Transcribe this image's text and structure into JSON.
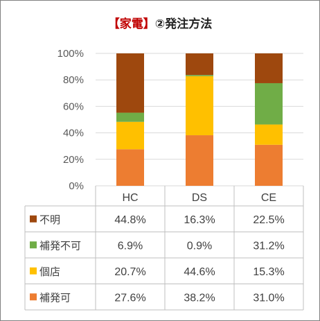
{
  "title": {
    "accent": "【家電】",
    "main": "②発注方法"
  },
  "chart_data": {
    "type": "bar",
    "stacked": true,
    "categories": [
      "HC",
      "DS",
      "CE"
    ],
    "yticks": [
      "0%",
      "20%",
      "40%",
      "60%",
      "80%",
      "100%"
    ],
    "ylim": [
      0,
      100
    ],
    "grid": true,
    "series": [
      {
        "name": "補発可",
        "color": "#ED7D31",
        "values": [
          27.6,
          38.2,
          31.0
        ],
        "labels": [
          "27.6%",
          "38.2%",
          "31.0%"
        ]
      },
      {
        "name": "個店",
        "color": "#FFC000",
        "values": [
          20.7,
          44.6,
          15.3
        ],
        "labels": [
          "20.7%",
          "44.6%",
          "15.3%"
        ]
      },
      {
        "name": "補発不可",
        "color": "#70AD47",
        "values": [
          6.9,
          0.9,
          31.2
        ],
        "labels": [
          "6.9%",
          "0.9%",
          "31.2%"
        ]
      },
      {
        "name": "不明",
        "color": "#9E480E",
        "values": [
          44.8,
          16.3,
          22.5
        ],
        "labels": [
          "44.8%",
          "16.3%",
          "22.5%"
        ]
      }
    ],
    "table_row_order": [
      "不明",
      "補発不可",
      "個店",
      "補発可"
    ]
  }
}
